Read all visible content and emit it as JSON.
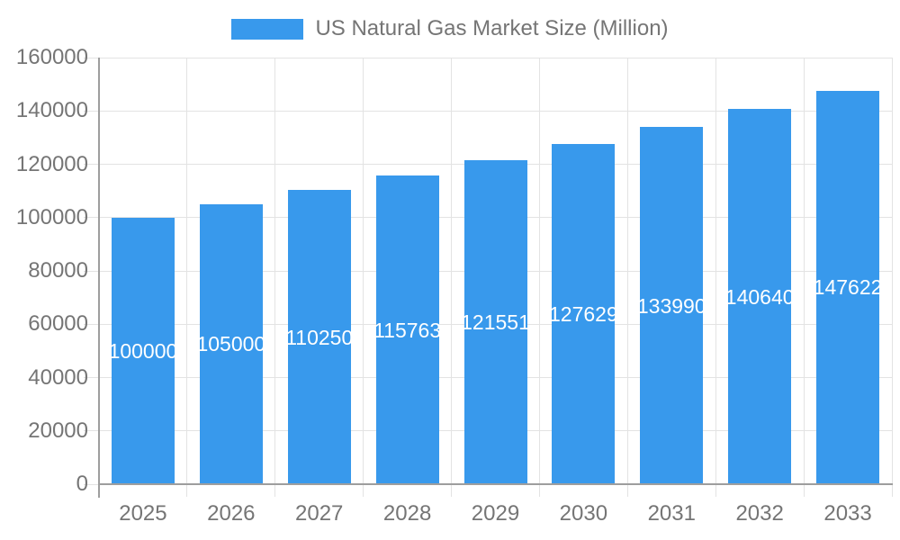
{
  "legend": {
    "label": "US Natural Gas Market Size (Million)"
  },
  "chart_data": {
    "type": "bar",
    "title": "US Natural Gas Market Size (Million)",
    "categories": [
      "2025",
      "2026",
      "2027",
      "2028",
      "2029",
      "2030",
      "2031",
      "2032",
      "2033"
    ],
    "values": [
      100000,
      105000,
      110250,
      115763,
      121551,
      127629,
      133990,
      140640,
      147622
    ],
    "bar_value_labels": [
      "100000",
      "105000",
      "110250",
      "115763",
      "121551",
      "127629",
      "133990",
      "140640",
      "147622"
    ],
    "xlabel": "",
    "ylabel": "",
    "ylim": [
      0,
      160000
    ],
    "ytick_step": 20000,
    "ytick_labels": [
      "0",
      "20000",
      "40000",
      "60000",
      "80000",
      "100000",
      "120000",
      "140000",
      "160000"
    ],
    "grid": true,
    "legend_position": "top",
    "colors": {
      "bar": "#3899ec",
      "grid": "#e3e3e3",
      "axis": "#9e9e9e",
      "tick_text": "#757575",
      "bar_label_text": "#ffffff",
      "background": "#ffffff"
    }
  }
}
